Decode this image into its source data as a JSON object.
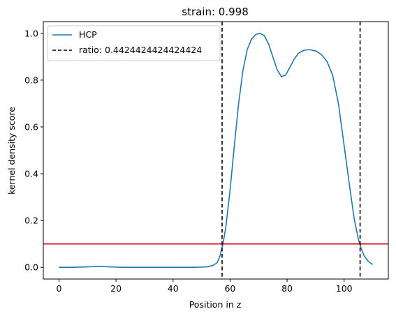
{
  "chart_data": {
    "type": "line",
    "title": "strain: 0.998",
    "xlabel": "Position in z",
    "ylabel": "kernel density score",
    "xlim": [
      -5.5,
      115.5
    ],
    "ylim": [
      -0.05,
      1.05
    ],
    "xticks": [
      0,
      20,
      40,
      60,
      80,
      100
    ],
    "yticks": [
      0.0,
      0.2,
      0.4,
      0.6,
      0.8,
      1.0
    ],
    "grid": false,
    "legend_position": "top-left",
    "series": [
      {
        "name": "HCP",
        "color": "#1f77b4",
        "style": "solid",
        "points": [
          [
            0,
            0.0
          ],
          [
            5,
            0.0
          ],
          [
            10,
            0.002
          ],
          [
            14,
            0.004
          ],
          [
            18,
            0.002
          ],
          [
            22,
            0.0
          ],
          [
            30,
            0.0
          ],
          [
            40,
            0.0
          ],
          [
            48,
            0.0
          ],
          [
            52,
            0.002
          ],
          [
            54,
            0.008
          ],
          [
            55.5,
            0.02
          ],
          [
            56.5,
            0.05
          ],
          [
            57.5,
            0.1
          ],
          [
            58.5,
            0.17
          ],
          [
            60,
            0.33
          ],
          [
            61.5,
            0.52
          ],
          [
            63,
            0.7
          ],
          [
            64.5,
            0.84
          ],
          [
            66,
            0.93
          ],
          [
            67.5,
            0.975
          ],
          [
            69,
            0.995
          ],
          [
            70.5,
            1.0
          ],
          [
            72,
            0.99
          ],
          [
            73.5,
            0.955
          ],
          [
            75,
            0.9
          ],
          [
            76.5,
            0.845
          ],
          [
            78,
            0.815
          ],
          [
            79.5,
            0.822
          ],
          [
            81,
            0.855
          ],
          [
            82.5,
            0.89
          ],
          [
            84,
            0.915
          ],
          [
            86,
            0.928
          ],
          [
            88,
            0.93
          ],
          [
            90,
            0.925
          ],
          [
            92,
            0.91
          ],
          [
            94,
            0.88
          ],
          [
            96,
            0.82
          ],
          [
            98,
            0.7
          ],
          [
            100,
            0.52
          ],
          [
            102,
            0.34
          ],
          [
            103.5,
            0.21
          ],
          [
            105,
            0.12
          ],
          [
            106,
            0.08
          ],
          [
            107,
            0.05
          ],
          [
            108.5,
            0.025
          ],
          [
            110,
            0.012
          ]
        ]
      },
      {
        "name": "ratio: 0.4424424424424424",
        "color": "#000000",
        "style": "dashed",
        "vlines": [
          57.2,
          105.6
        ]
      }
    ],
    "hline": {
      "y": 0.1,
      "color": "#e00000"
    }
  }
}
